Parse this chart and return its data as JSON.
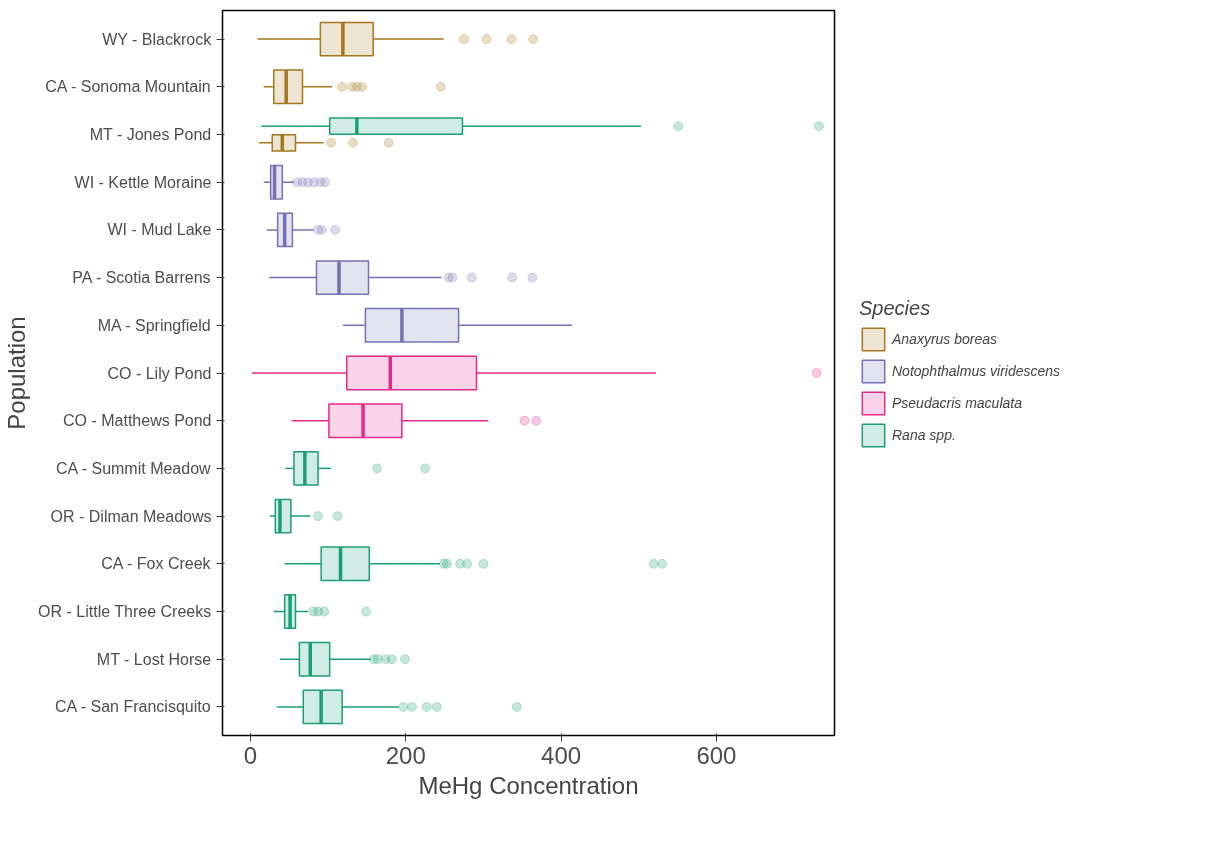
{
  "chart_data": {
    "type": "box",
    "orientation": "horizontal",
    "xlabel": "MeHg Concentration",
    "ylabel": "Population",
    "legend_title": "Species",
    "legend": "right",
    "grid": false,
    "categories": [
      "WY - Blackrock",
      "CA - Sonoma Mountain",
      "MT - Jones Pond",
      "WI - Kettle Moraine",
      "WI - Mud Lake",
      "PA - Scotia Barrens",
      "MA - Springfield",
      "CO - Lily Pond",
      "CO - Matthews Pond",
      "CA - Summit Meadow",
      "OR - Dilman Meadows",
      "CA - Fox Creek",
      "OR - Little Three Creeks",
      "MT - Lost Horse",
      "CA - San Francisquito"
    ],
    "xlim": [
      -36,
      752
    ],
    "xticks": [
      0,
      200,
      400,
      600
    ],
    "series": [
      {
        "name": "Anaxyrus boreas",
        "color": "#a6761d",
        "boxes": [
          {
            "low": 9,
            "q1": 90,
            "median": 119,
            "q3": 158,
            "high": 249,
            "outliers": [
              275,
              304,
              336,
              364
            ]
          },
          {
            "low": 17,
            "q1": 30,
            "median": 46,
            "q3": 67,
            "high": 105,
            "outliers": [
              118,
              131,
              137,
              144,
              245
            ]
          },
          {
            "low": 11,
            "q1": 28,
            "median": 41,
            "q3": 58,
            "high": 94,
            "outliers": [
              104,
              132,
              178
            ]
          },
          null,
          null,
          null,
          null,
          null,
          null,
          null,
          null,
          null,
          null,
          null,
          null
        ]
      },
      {
        "name": "Notophthalmus viridescens",
        "color": "#7570b3",
        "boxes": [
          null,
          null,
          null,
          {
            "low": 17,
            "q1": 26,
            "median": 31,
            "q3": 41,
            "high": 56,
            "outliers": [
              60,
              67,
              74,
              82,
              90,
              96
            ]
          },
          {
            "low": 21,
            "q1": 35,
            "median": 44,
            "q3": 54,
            "high": 81,
            "outliers": [
              87,
              92,
              109
            ]
          },
          {
            "low": 24,
            "q1": 85,
            "median": 114,
            "q3": 152,
            "high": 246,
            "outliers": [
              255,
              260,
              285,
              337,
              363
            ]
          },
          {
            "low": 119,
            "q1": 148,
            "median": 195,
            "q3": 268,
            "high": 414
          },
          null,
          null,
          null,
          null,
          null,
          null,
          null,
          null
        ]
      },
      {
        "name": "Pseudacris maculata",
        "color": "#e7298a",
        "boxes": [
          null,
          null,
          null,
          null,
          null,
          null,
          null,
          {
            "low": 2,
            "q1": 124,
            "median": 180,
            "q3": 291,
            "high": 522,
            "outliers": [
              729
            ]
          },
          {
            "low": 53,
            "q1": 101,
            "median": 145,
            "q3": 195,
            "high": 306,
            "outliers": [
              353,
              368
            ]
          },
          null,
          null,
          null,
          null,
          null,
          null
        ]
      },
      {
        "name": "Rana spp.",
        "color": "#1b9e77",
        "boxes": [
          null,
          null,
          {
            "low": 14,
            "q1": 102,
            "median": 137,
            "q3": 273,
            "high": 503,
            "outliers": [
              551,
              732
            ]
          },
          null,
          null,
          null,
          null,
          null,
          null,
          {
            "low": 45,
            "q1": 56,
            "median": 70,
            "q3": 87,
            "high": 104,
            "outliers": [
              163,
              225
            ]
          },
          {
            "low": 25,
            "q1": 32,
            "median": 38,
            "q3": 52,
            "high": 77,
            "outliers": [
              87,
              112
            ]
          },
          {
            "low": 44,
            "q1": 91,
            "median": 116,
            "q3": 153,
            "high": 244,
            "outliers": [
              249,
              253,
              270,
              279,
              300,
              519,
              530
            ]
          },
          {
            "low": 30,
            "q1": 44,
            "median": 51,
            "q3": 58,
            "high": 74,
            "outliers": [
              81,
              87,
              95,
              149
            ]
          },
          {
            "low": 38,
            "q1": 63,
            "median": 77,
            "q3": 102,
            "high": 155,
            "outliers": [
              159,
              164,
              174,
              182,
              199
            ]
          },
          {
            "low": 34,
            "q1": 68,
            "median": 91,
            "q3": 118,
            "high": 191,
            "outliers": [
              197,
              208,
              227,
              240,
              343
            ]
          }
        ]
      }
    ]
  }
}
